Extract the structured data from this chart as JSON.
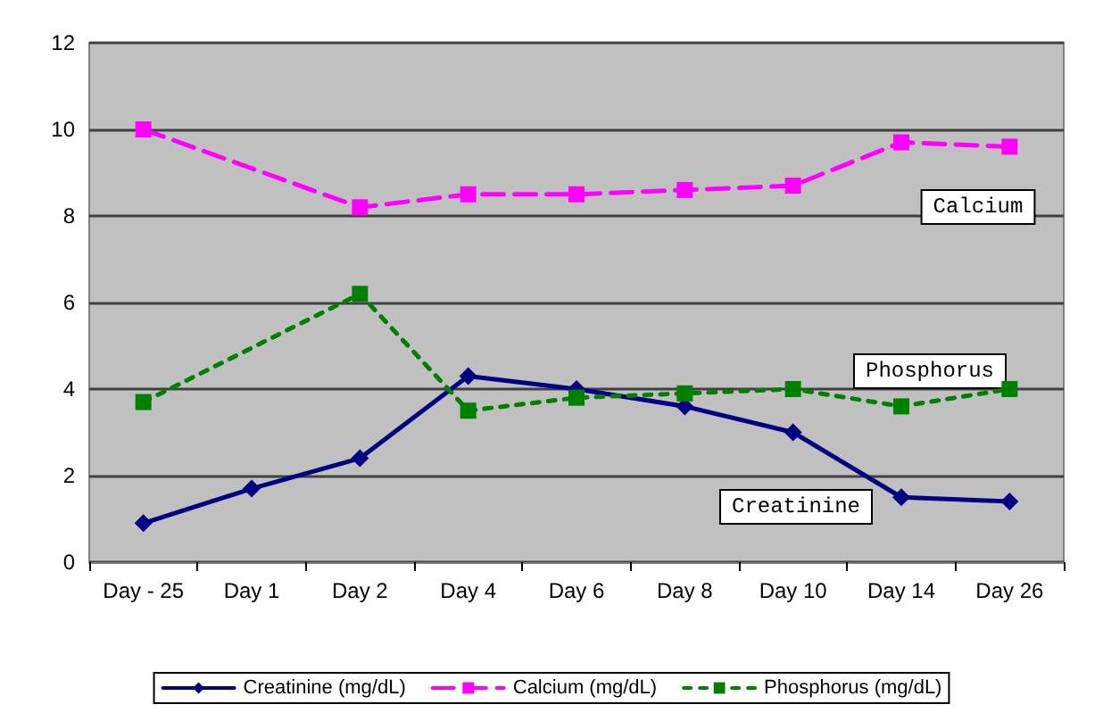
{
  "chart_data": {
    "type": "line",
    "categories": [
      "Day - 25",
      "Day 1",
      "Day 2",
      "Day 4",
      "Day 6",
      "Day 8",
      "Day 10",
      "Day 14",
      "Day 26"
    ],
    "series": [
      {
        "name": "Creatinine (mg/dL)",
        "color": "#000080",
        "marker": "diamond",
        "line_style": "solid",
        "values": [
          0.9,
          1.7,
          2.4,
          4.3,
          4.0,
          3.6,
          3.0,
          1.5,
          1.4
        ]
      },
      {
        "name": "Calcium (mg/dL)",
        "color": "#ff00ff",
        "marker": "square",
        "line_style": "dashed",
        "values": [
          10.0,
          null,
          8.2,
          8.5,
          8.5,
          8.6,
          8.7,
          9.7,
          9.6
        ]
      },
      {
        "name": "Phosphorus (mg/dL)",
        "color": "#008000",
        "marker": "square",
        "line_style": "dotted",
        "values": [
          3.7,
          null,
          6.2,
          3.5,
          3.8,
          3.9,
          4.0,
          3.6,
          4.0
        ]
      }
    ],
    "ylim": [
      0,
      12
    ],
    "yticks": [
      0,
      2,
      4,
      6,
      8,
      10,
      12
    ],
    "grid": "y",
    "legend": "bottom",
    "annotations": [
      "Calcium",
      "Phosphorus",
      "Creatinine"
    ]
  }
}
